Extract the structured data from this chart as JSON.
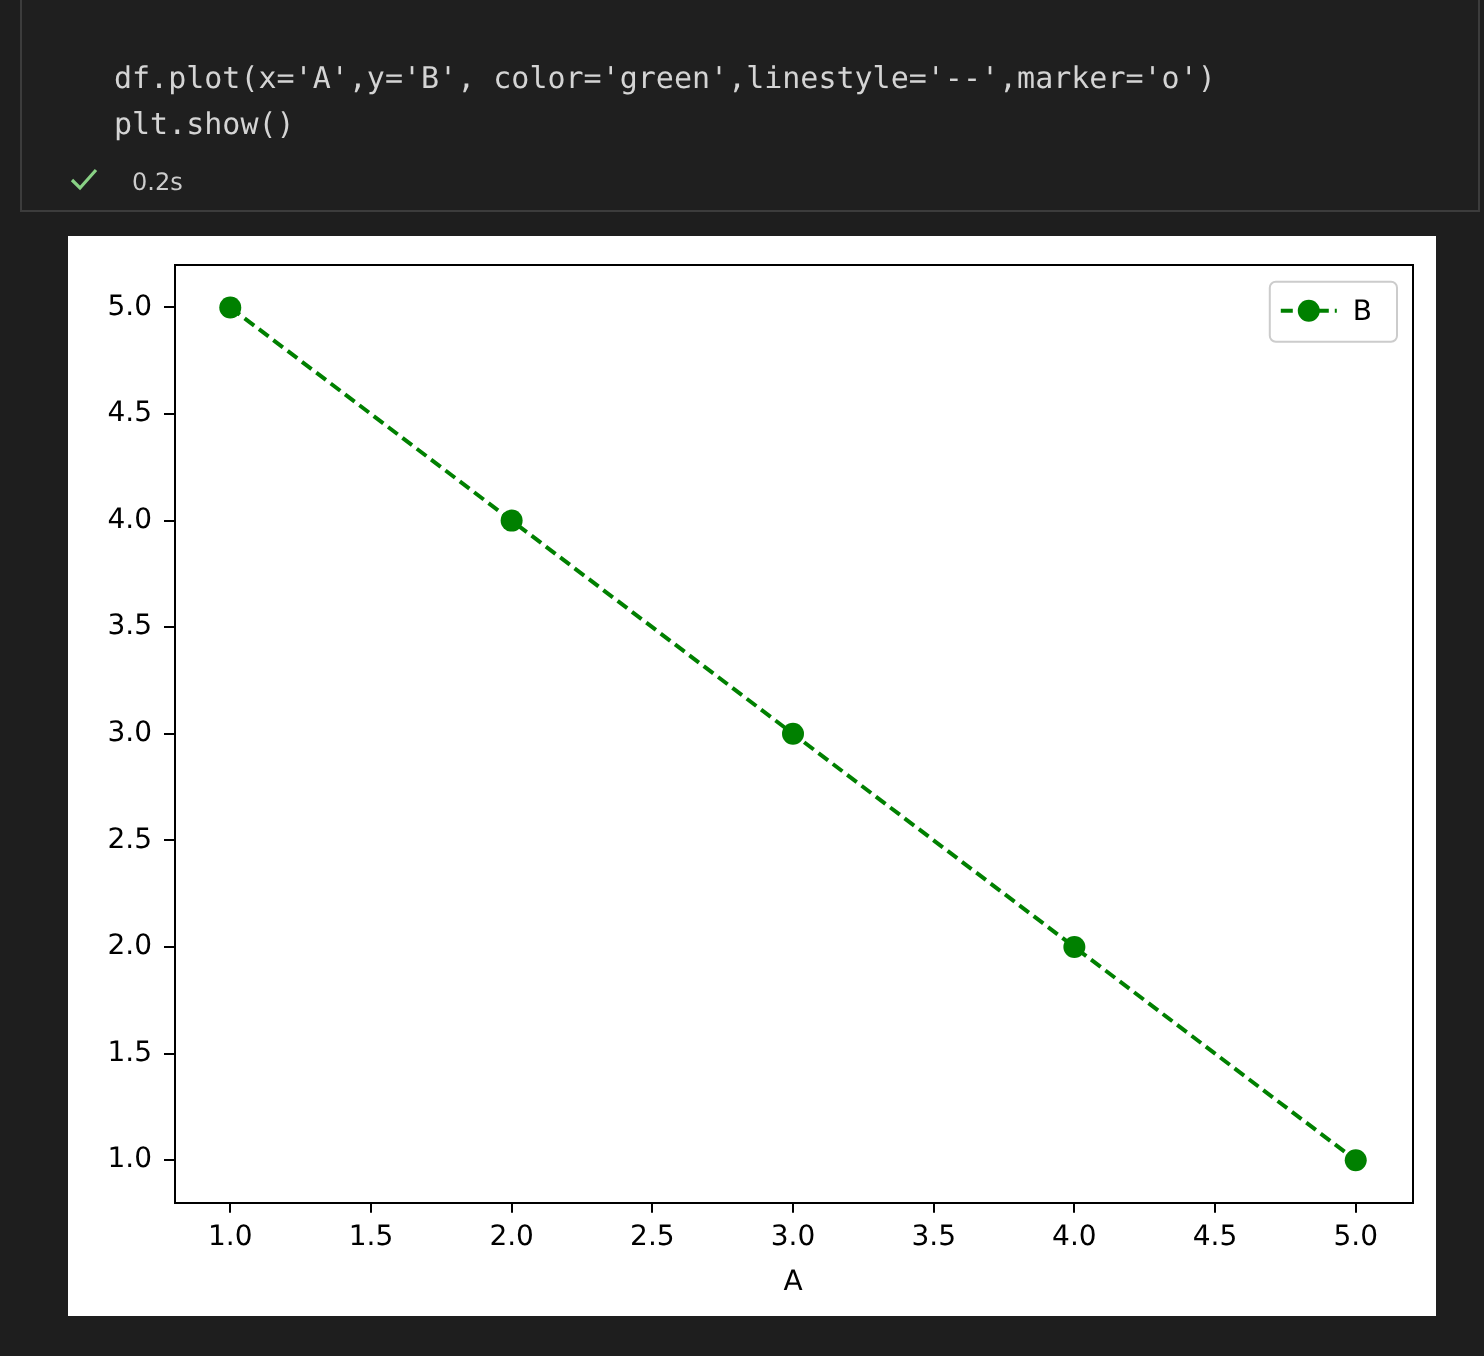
{
  "chart_data": {
    "type": "line",
    "xlabel": "A",
    "x": [
      1,
      2,
      3,
      4,
      5
    ],
    "series": [
      {
        "name": "B",
        "color": "#008000",
        "values": [
          5,
          4,
          3,
          2,
          1
        ]
      }
    ],
    "xlim": [
      0.8,
      5.2
    ],
    "ylim": [
      0.8,
      5.2
    ],
    "xticks": [
      {
        "value": 1,
        "label": "1.0"
      },
      {
        "value": 1.5,
        "label": "1.5"
      },
      {
        "value": 2,
        "label": "2.0"
      },
      {
        "value": 2.5,
        "label": "2.5"
      },
      {
        "value": 3,
        "label": "3.0"
      },
      {
        "value": 3.5,
        "label": "3.5"
      },
      {
        "value": 4,
        "label": "4.0"
      },
      {
        "value": 4.5,
        "label": "4.5"
      },
      {
        "value": 5,
        "label": "5.0"
      }
    ],
    "yticks": [
      {
        "value": 1,
        "label": "1.0"
      },
      {
        "value": 1.5,
        "label": "1.5"
      },
      {
        "value": 2,
        "label": "2.0"
      },
      {
        "value": 2.5,
        "label": "2.5"
      },
      {
        "value": 3,
        "label": "3.0"
      },
      {
        "value": 3.5,
        "label": "3.5"
      },
      {
        "value": 4,
        "label": "4.0"
      },
      {
        "value": 4.5,
        "label": "4.5"
      },
      {
        "value": 5,
        "label": "5.0"
      }
    ],
    "marker": "circle",
    "line_style": "dashed",
    "legend": "top right",
    "grid": false,
    "annotations": [
      "df.plot(x='A',y='B', color='green',linestyle='--',marker='o')",
      "plt.show()",
      "0.2s"
    ]
  }
}
